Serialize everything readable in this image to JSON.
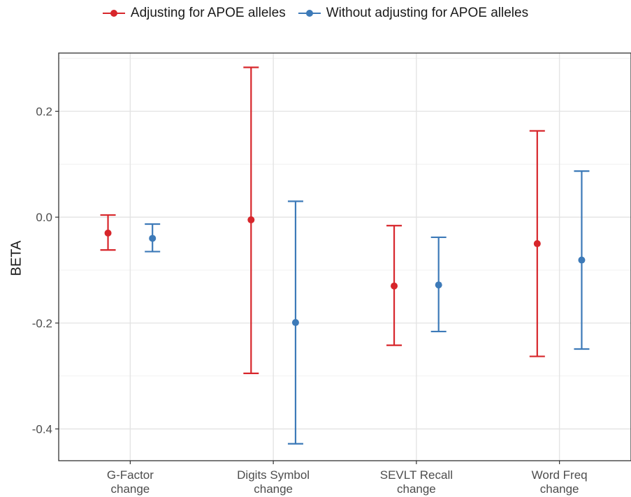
{
  "legend": {
    "items": [
      {
        "label": "Adjusting for APOE alleles",
        "color": "#d7262b"
      },
      {
        "label": "Without adjusting for APOE alleles",
        "color": "#3d7ab8"
      }
    ]
  },
  "chart_data": {
    "type": "errorbar",
    "title": "",
    "xlabel": "",
    "ylabel": "BETA",
    "categories": [
      "G-Factor change",
      "Digits Symbol change",
      "SEVLT Recall change",
      "Word Freq change"
    ],
    "category_lines": [
      [
        "G-Factor",
        "change"
      ],
      [
        "Digits Symbol",
        "change"
      ],
      [
        "SEVLT Recall",
        "change"
      ],
      [
        "Word Freq",
        "change"
      ]
    ],
    "yticks": [
      0.2,
      0.0,
      -0.2,
      -0.4
    ],
    "ytick_labels": [
      "0.2",
      "0.0",
      "-0.2",
      "-0.4"
    ],
    "ylim": [
      -0.46,
      0.31
    ],
    "grid": true,
    "legend_position": "top",
    "series": [
      {
        "name": "Adjusting for APOE alleles",
        "color": "#d7262b",
        "values": [
          -0.03,
          -0.005,
          -0.13,
          -0.05
        ],
        "lower": [
          -0.062,
          -0.295,
          -0.242,
          -0.263
        ],
        "upper": [
          0.004,
          0.283,
          -0.016,
          0.163
        ]
      },
      {
        "name": "Without adjusting for APOE alleles",
        "color": "#3d7ab8",
        "values": [
          -0.04,
          -0.199,
          -0.128,
          -0.081
        ],
        "lower": [
          -0.065,
          -0.428,
          -0.216,
          -0.249
        ],
        "upper": [
          -0.013,
          0.03,
          -0.038,
          0.087
        ]
      }
    ]
  }
}
